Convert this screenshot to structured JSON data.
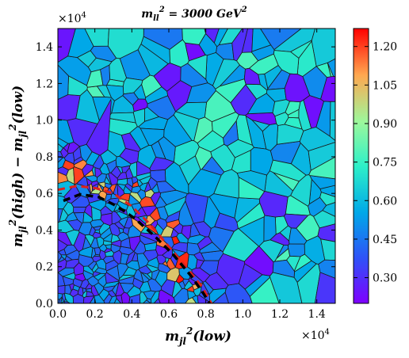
{
  "chart_data": {
    "type": "heatmap",
    "subtype": "voronoi tessellation",
    "title": "m_{ll}^2 = 3000 GeV^2",
    "xlabel": "m_{jl}^2(low)",
    "ylabel": "m_{jl}^2(high) − m_{jl}^2(low)",
    "x_ticks": [
      "0.0",
      "0.2",
      "0.4",
      "0.6",
      "0.8",
      "1.0",
      "1.2",
      "1.4"
    ],
    "y_ticks": [
      "0.0",
      "0.2",
      "0.4",
      "0.6",
      "0.8",
      "1.0",
      "1.2",
      "1.4"
    ],
    "x_multiplier": "×10^4",
    "y_multiplier": "×10^4",
    "xlim": [
      0,
      15000
    ],
    "ylim": [
      0,
      15000
    ],
    "colorbar": {
      "ticks": [
        "0.30",
        "0.45",
        "0.60",
        "0.75",
        "0.90",
        "1.05",
        "1.20"
      ],
      "range": [
        0.2,
        1.27
      ],
      "colormap": "rainbow"
    },
    "boundary_curve": {
      "style": "dashed",
      "color": "#000000",
      "points": [
        [
          300,
          5600
        ],
        [
          1200,
          5950
        ],
        [
          2200,
          5800
        ],
        [
          3200,
          5300
        ],
        [
          4200,
          4600
        ],
        [
          5200,
          3700
        ],
        [
          6200,
          2700
        ],
        [
          7200,
          1500
        ],
        [
          7900,
          500
        ],
        [
          8200,
          0
        ]
      ]
    },
    "highlight_curve": {
      "style": "dashed",
      "color": "#e0201c",
      "points": [
        [
          0,
          6200
        ],
        [
          1000,
          6400
        ],
        [
          2000,
          6300
        ],
        [
          3000,
          6000
        ],
        [
          4000,
          5300
        ],
        [
          5000,
          4300
        ],
        [
          6000,
          3100
        ],
        [
          7000,
          1900
        ],
        [
          7800,
          900
        ],
        [
          8300,
          0
        ]
      ]
    }
  }
}
